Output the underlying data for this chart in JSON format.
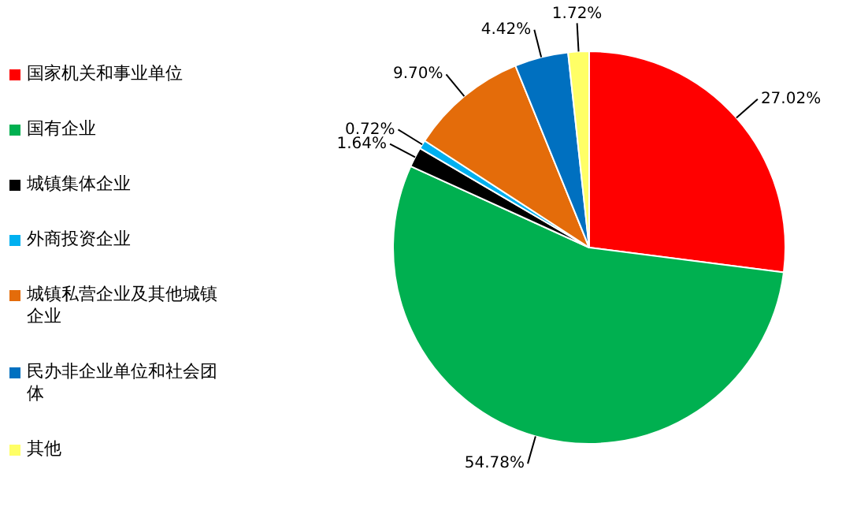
{
  "chart_data": {
    "type": "pie",
    "categories": [
      "国家机关和事业单位",
      "国有企业",
      "城镇集体企业",
      "外商投资企业",
      "城镇私营企业及其他城镇企业",
      "民办非企业单位和社会团体",
      "其他"
    ],
    "values": [
      27.02,
      54.78,
      1.64,
      0.72,
      9.7,
      4.42,
      1.72
    ],
    "colors": [
      "#ff0000",
      "#00b050",
      "#000000",
      "#00b0f0",
      "#e46c0a",
      "#0070c0",
      "#ffff66"
    ],
    "value_labels": [
      "27.02%",
      "54.78%",
      "1.64%",
      "0.72%",
      "9.70%",
      "4.42%",
      "1.72%"
    ],
    "legend": "left"
  }
}
